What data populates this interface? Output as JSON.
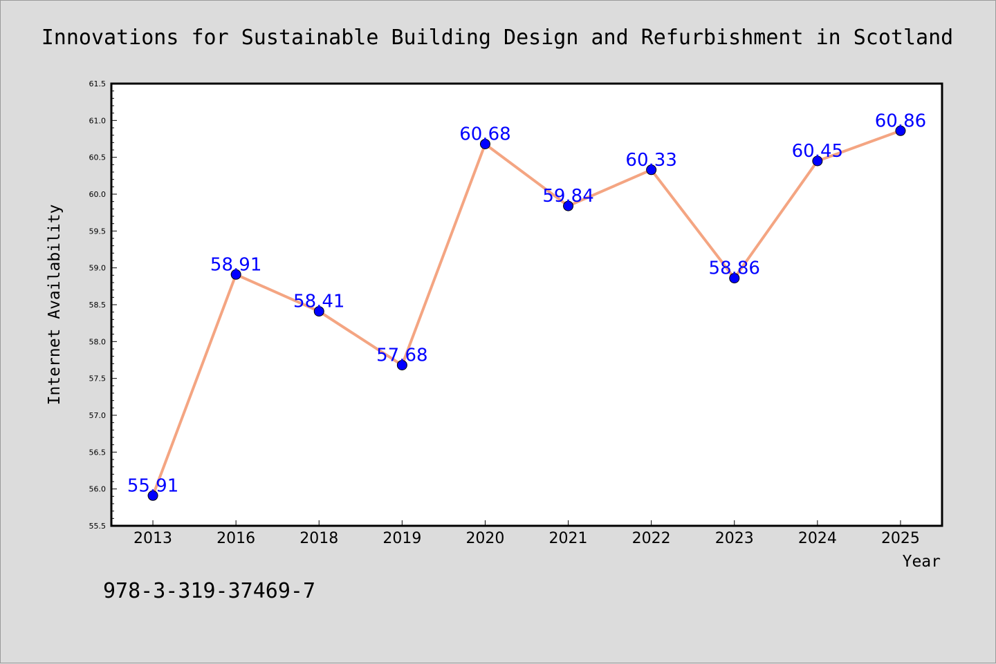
{
  "chart_data": {
    "type": "line",
    "title": "Innovations for Sustainable Building Design and Refurbishment in Scotland",
    "xlabel": "Year",
    "ylabel": "Internet Availability",
    "categories": [
      "2013",
      "2016",
      "2018",
      "2019",
      "2020",
      "2021",
      "2022",
      "2023",
      "2024",
      "2025"
    ],
    "series": [
      {
        "values": [
          55.91,
          58.91,
          58.41,
          57.68,
          60.68,
          59.84,
          60.33,
          58.86,
          60.45,
          60.86
        ],
        "data_labels": [
          "55.91",
          "58.91",
          "58.41",
          "57.68",
          "60.68",
          "59.84",
          "60.33",
          "58.86",
          "60.45",
          "60.86"
        ],
        "line_color": "#f4a582",
        "marker_color": "#0000ff"
      }
    ],
    "ylim": [
      55.5,
      61.5
    ],
    "yticks": [
      "55.5",
      "56.0",
      "56.5",
      "57.0",
      "57.5",
      "58.0",
      "58.5",
      "59.0",
      "59.5",
      "60.0",
      "60.5",
      "61.0",
      "61.5"
    ],
    "grid": false,
    "legend": "none",
    "data_label_color": "#0000ff",
    "annotation": "978-3-319-37469-7"
  }
}
